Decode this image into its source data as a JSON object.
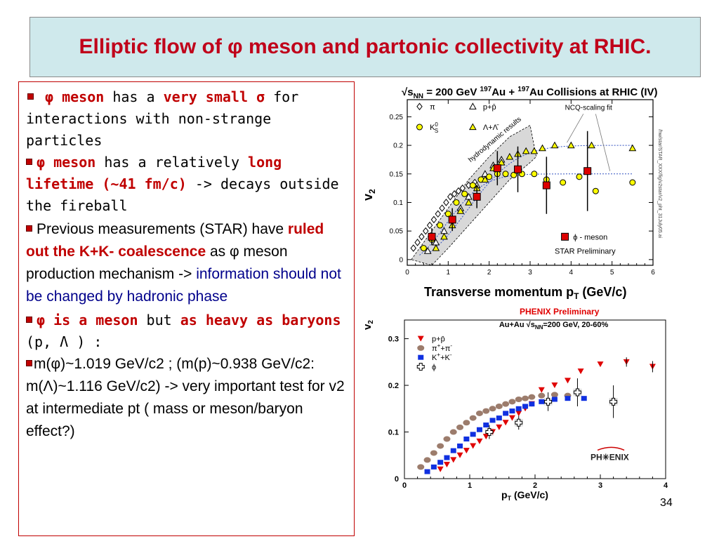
{
  "slide": {
    "title": "Elliptic flow of φ meson and partonic collectivity at RHIC.",
    "page_number": "34",
    "bullets": [
      {
        "phi_meson": "φ meson",
        "has_a": " has a ",
        "very_small": "very small σ",
        "rest": " for interactions with non-strange particles"
      },
      {
        "phi_meson": "φ meson",
        "has_rel": " has a relatively ",
        "long_lifetime": "long lifetime (~41 fm/c)",
        "rest": " -> decays outside the fireball"
      },
      {
        "pre": "Previous measurements (STAR) have ",
        "ruled_out": "ruled out the K+K- coalescence",
        "as_phi": " as φ meson production mechanism -> ",
        "info": "information should not be changed by hadronic phase"
      },
      {
        "phi_is": "φ is a meson",
        "but": " but ",
        "as_heavy": "as heavy as baryons",
        "rest": " (p, Λ ) :"
      },
      {
        "text": "m(φ)~1.019 GeV/c2 ;  (m(p)~0.938 GeV/c2: m(Λ)~1.116 GeV/c2) -> very important test for v2 at intermediate pt ( mass or meson/baryon effect?)"
      }
    ]
  },
  "chart_data": [
    {
      "type": "scatter",
      "title": "√sNN = 200 GeV 197Au + 197Au Collisions at RHIC (IV)",
      "title_parts": {
        "a": "√s",
        "b": "NN",
        "c": " = 200 GeV ",
        "d": "197",
        "e": "Au + ",
        "f": "197",
        "g": "Au Collisions at RHIC (IV)"
      },
      "xlabel": "Transverse momentum p",
      "xlabel_sub": "T",
      "xlabel_unit": " (GeV/c)",
      "ylabel": "v",
      "ylabel_sub": "2",
      "xlim": [
        0,
        6
      ],
      "ylim": [
        -0.01,
        0.28
      ],
      "xticks": [
        "0",
        "1",
        "2",
        "3",
        "4",
        "5",
        "6"
      ],
      "yticks": [
        "0",
        "0.05",
        "0.1",
        "0.15",
        "0.2",
        "0.25"
      ],
      "annotations": {
        "hydro": "hydrodynamic results",
        "ncq": "NCQ-scaling fit",
        "prelim": "STAR Preliminary",
        "side": "/hw/star/STAR_XXX/fig/v2star/v2_pht_31July05.ai"
      },
      "legend": {
        "pi": "π",
        "ppbar": "p+p̄",
        "k0s": "K",
        "k0s_sup": "0",
        "k0s_sub": "S",
        "lambda": "Λ+Λ̄",
        "phi": "ϕ - meson"
      },
      "series": [
        {
          "name": "π",
          "marker": "open-diamond",
          "color": "#000000",
          "x": [
            0.15,
            0.25,
            0.35,
            0.45,
            0.55,
            0.65,
            0.75,
            0.85,
            0.95,
            1.05,
            1.15,
            1.25,
            1.35,
            1.5,
            1.65
          ],
          "y": [
            0.02,
            0.03,
            0.04,
            0.05,
            0.06,
            0.07,
            0.08,
            0.09,
            0.1,
            0.11,
            0.115,
            0.12,
            0.125,
            0.13,
            0.135
          ]
        },
        {
          "name": "p+p̄",
          "marker": "open-triangle",
          "color": "#000000",
          "x": [
            0.5,
            0.7,
            0.9,
            1.1,
            1.3,
            1.5,
            1.7,
            1.9,
            2.1,
            2.3
          ],
          "y": [
            0.015,
            0.03,
            0.05,
            0.07,
            0.09,
            0.11,
            0.13,
            0.15,
            0.165,
            0.175
          ]
        },
        {
          "name": "K0S",
          "marker": "yellow-circle",
          "color": "#ffff00",
          "x": [
            0.4,
            0.6,
            0.8,
            1.0,
            1.2,
            1.4,
            1.6,
            1.8,
            2.0,
            2.2,
            2.4,
            2.6,
            2.8,
            3.1,
            3.4,
            3.8,
            4.2,
            4.6,
            5.5
          ],
          "y": [
            0.02,
            0.035,
            0.06,
            0.08,
            0.1,
            0.115,
            0.13,
            0.14,
            0.145,
            0.15,
            0.15,
            0.148,
            0.15,
            0.15,
            0.14,
            0.135,
            0.145,
            0.12,
            0.135
          ]
        },
        {
          "name": "Λ+Λ̄",
          "marker": "yellow-triangle",
          "color": "#ffff00",
          "x": [
            0.7,
            0.9,
            1.1,
            1.3,
            1.5,
            1.7,
            1.9,
            2.1,
            2.3,
            2.5,
            2.7,
            2.9,
            3.1,
            3.3,
            3.6,
            4.0,
            4.5,
            5.5
          ],
          "y": [
            0.02,
            0.04,
            0.06,
            0.085,
            0.1,
            0.125,
            0.14,
            0.16,
            0.17,
            0.18,
            0.185,
            0.19,
            0.19,
            0.195,
            0.2,
            0.2,
            0.2,
            0.195
          ]
        },
        {
          "name": "ϕ - meson",
          "marker": "red-square",
          "color": "#dd0000",
          "x": [
            0.6,
            1.1,
            1.7,
            2.2,
            2.7,
            3.4,
            4.4
          ],
          "y": [
            0.04,
            0.07,
            0.11,
            0.16,
            0.158,
            0.13,
            0.155
          ],
          "err": [
            0.015,
            0.02,
            0.02,
            0.03,
            0.04,
            0.05,
            0.07
          ]
        }
      ]
    },
    {
      "type": "scatter",
      "title": "PHENIX Preliminary",
      "subtitle": "Au+Au √sNN=200 GeV, 20-60%",
      "subtitle_parts": {
        "a": "Au+Au ",
        "b": "√s",
        "c": "NN",
        "d": "=200 GeV, 20-60%"
      },
      "xlabel": "p",
      "xlabel_sub": "T",
      "xlabel_unit": " (GeV/c)",
      "ylabel": "v",
      "ylabel_sub": "2",
      "xlim": [
        0,
        4
      ],
      "ylim": [
        0,
        0.34
      ],
      "xticks": [
        "0",
        "1",
        "2",
        "3",
        "4"
      ],
      "yticks": [
        "0",
        "0.1",
        "0.2",
        "0.3"
      ],
      "logo": "PH✳ENIX",
      "legend": {
        "ppbar": "p+p̄",
        "pion": "π",
        "pion_sup": "+",
        "pion_mid": "+π",
        "pion_sup2": "-",
        "kaon": "K",
        "kaon_sup": "+",
        "kaon_mid": "+K",
        "kaon_sup2": "-",
        "phi": "ϕ"
      },
      "series": [
        {
          "name": "p+p̄",
          "marker": "red-triangle-down",
          "color": "#e00000",
          "x": [
            0.55,
            0.65,
            0.75,
            0.85,
            0.95,
            1.05,
            1.15,
            1.25,
            1.35,
            1.45,
            1.55,
            1.65,
            1.75,
            1.85,
            1.95,
            2.1,
            2.3,
            2.5,
            2.7,
            3.0,
            3.4,
            3.8
          ],
          "y": [
            0.02,
            0.03,
            0.04,
            0.05,
            0.06,
            0.07,
            0.08,
            0.09,
            0.1,
            0.11,
            0.12,
            0.13,
            0.14,
            0.15,
            0.16,
            0.19,
            0.2,
            0.21,
            0.23,
            0.245,
            0.25,
            0.24
          ]
        },
        {
          "name": "π++π-",
          "marker": "brown-circle",
          "color": "#9c7c6c",
          "x": [
            0.25,
            0.35,
            0.45,
            0.55,
            0.65,
            0.75,
            0.85,
            0.95,
            1.05,
            1.15,
            1.25,
            1.35,
            1.45,
            1.55,
            1.65,
            1.75,
            1.85,
            1.95,
            2.1,
            2.3,
            2.5
          ],
          "y": [
            0.025,
            0.04,
            0.055,
            0.07,
            0.085,
            0.1,
            0.11,
            0.12,
            0.13,
            0.14,
            0.145,
            0.15,
            0.155,
            0.16,
            0.165,
            0.17,
            0.172,
            0.175,
            0.178,
            0.18,
            0.178
          ]
        },
        {
          "name": "K++K-",
          "marker": "blue-square",
          "color": "#1030e0",
          "x": [
            0.35,
            0.45,
            0.55,
            0.65,
            0.75,
            0.85,
            0.95,
            1.05,
            1.15,
            1.25,
            1.35,
            1.45,
            1.55,
            1.65,
            1.75,
            1.85,
            1.95,
            2.1,
            2.3,
            2.5,
            2.75
          ],
          "y": [
            0.015,
            0.025,
            0.035,
            0.045,
            0.06,
            0.07,
            0.085,
            0.095,
            0.105,
            0.115,
            0.125,
            0.13,
            0.14,
            0.145,
            0.15,
            0.155,
            0.16,
            0.165,
            0.17,
            0.172,
            0.172
          ]
        },
        {
          "name": "ϕ",
          "marker": "open-cross",
          "color": "#000000",
          "x": [
            1.3,
            1.75,
            2.2,
            2.65,
            3.2
          ],
          "y": [
            0.1,
            0.12,
            0.165,
            0.185,
            0.165
          ],
          "err": [
            0.015,
            0.015,
            0.02,
            0.03,
            0.035
          ]
        }
      ]
    }
  ]
}
